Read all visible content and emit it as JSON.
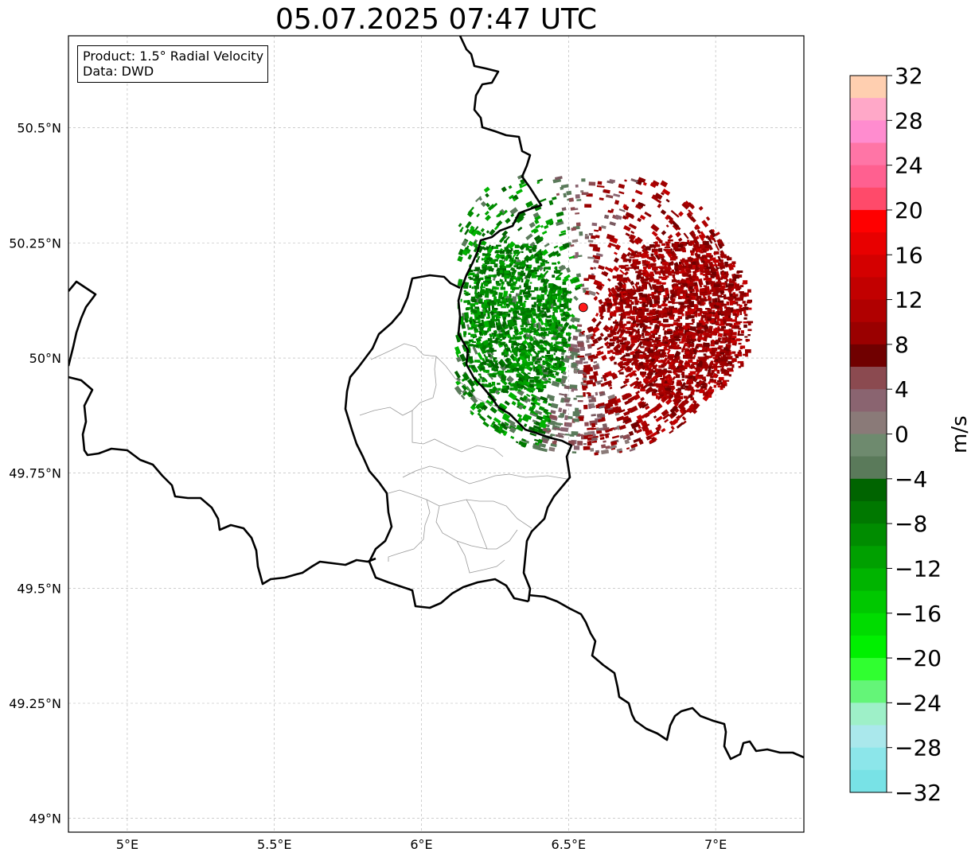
{
  "title": "05.07.2025 07:47 UTC",
  "info": {
    "product": "Product: 1.5° Radial Velocity",
    "source": "Data: DWD"
  },
  "axes": {
    "x_ticks": [
      {
        "value": 5.0,
        "label": "5°E"
      },
      {
        "value": 5.5,
        "label": "5.5°E"
      },
      {
        "value": 6.0,
        "label": "6°E"
      },
      {
        "value": 6.5,
        "label": "6.5°E"
      },
      {
        "value": 7.0,
        "label": "7°E"
      }
    ],
    "y_ticks": [
      {
        "value": 49.0,
        "label": "49°N"
      },
      {
        "value": 49.25,
        "label": "49.25°N"
      },
      {
        "value": 49.5,
        "label": "49.5°N"
      },
      {
        "value": 49.75,
        "label": "49.75°N"
      },
      {
        "value": 50.0,
        "label": "50°N"
      },
      {
        "value": 50.25,
        "label": "50.25°N"
      },
      {
        "value": 50.5,
        "label": "50.5°N"
      }
    ],
    "lon_range": [
      4.8,
      7.3
    ],
    "lat_range": [
      48.97,
      50.7
    ],
    "gridlines": true
  },
  "radar": {
    "site_lon": 6.55,
    "site_lat": 50.11,
    "site_color": "#ff1a1a"
  },
  "colorbar": {
    "label": "m/s",
    "range": [
      -32,
      32
    ],
    "tick_labels": [
      "32",
      "28",
      "24",
      "20",
      "16",
      "12",
      "8",
      "4",
      "0",
      "−4",
      "−8",
      "−12",
      "−16",
      "−20",
      "−24",
      "−28",
      "−32"
    ],
    "colors_top_to_bottom": [
      "#ffcfb0",
      "#ffa8c8",
      "#ff8ccf",
      "#ff75a6",
      "#ff6090",
      "#ff4a6a",
      "#ff0000",
      "#e80000",
      "#d40000",
      "#c20000",
      "#b00000",
      "#9a0000",
      "#700000",
      "#8b4a50",
      "#8a6470",
      "#8a7a78",
      "#6e8a6e",
      "#5a7a5a",
      "#006400",
      "#007800",
      "#008c00",
      "#00a000",
      "#00b400",
      "#00c800",
      "#00dc00",
      "#00f000",
      "#30ff30",
      "#64f578",
      "#9ef0c8",
      "#aae8ec",
      "#8ce6ea",
      "#78e2e6"
    ]
  }
}
